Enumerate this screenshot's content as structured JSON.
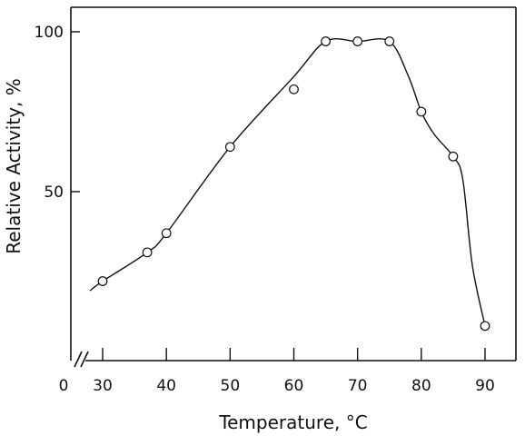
{
  "chart_data": {
    "type": "line",
    "title": "",
    "xlabel": "Temperature, °C",
    "ylabel": "Relative Activity, %",
    "x_axis_broken": true,
    "x_origin_label": "0",
    "x_ticks": [
      30,
      40,
      50,
      60,
      70,
      80,
      90
    ],
    "x_tick_labels": [
      "30",
      "40",
      "50",
      "60",
      "70",
      "80",
      "90"
    ],
    "y_ticks": [
      50,
      100
    ],
    "y_tick_labels": [
      "50",
      "100"
    ],
    "xlim": [
      28,
      92
    ],
    "ylim": [
      5,
      108
    ],
    "grid": false,
    "legend": "none",
    "points": [
      {
        "x": 30,
        "y": 22
      },
      {
        "x": 37,
        "y": 31
      },
      {
        "x": 40,
        "y": 37
      },
      {
        "x": 50,
        "y": 64
      },
      {
        "x": 60,
        "y": 82
      },
      {
        "x": 65,
        "y": 97
      },
      {
        "x": 70,
        "y": 97
      },
      {
        "x": 75,
        "y": 97
      },
      {
        "x": 80,
        "y": 75
      },
      {
        "x": 85,
        "y": 61
      },
      {
        "x": 90,
        "y": 8
      }
    ],
    "curve": [
      {
        "x": 28,
        "y": 19
      },
      {
        "x": 30,
        "y": 22
      },
      {
        "x": 37,
        "y": 31
      },
      {
        "x": 40,
        "y": 37
      },
      {
        "x": 50,
        "y": 64
      },
      {
        "x": 60,
        "y": 86
      },
      {
        "x": 65,
        "y": 97
      },
      {
        "x": 70,
        "y": 97
      },
      {
        "x": 75,
        "y": 97
      },
      {
        "x": 78,
        "y": 86
      },
      {
        "x": 80,
        "y": 75
      },
      {
        "x": 82,
        "y": 68
      },
      {
        "x": 85,
        "y": 61
      },
      {
        "x": 86.5,
        "y": 54
      },
      {
        "x": 88,
        "y": 27
      },
      {
        "x": 90,
        "y": 8
      }
    ]
  }
}
